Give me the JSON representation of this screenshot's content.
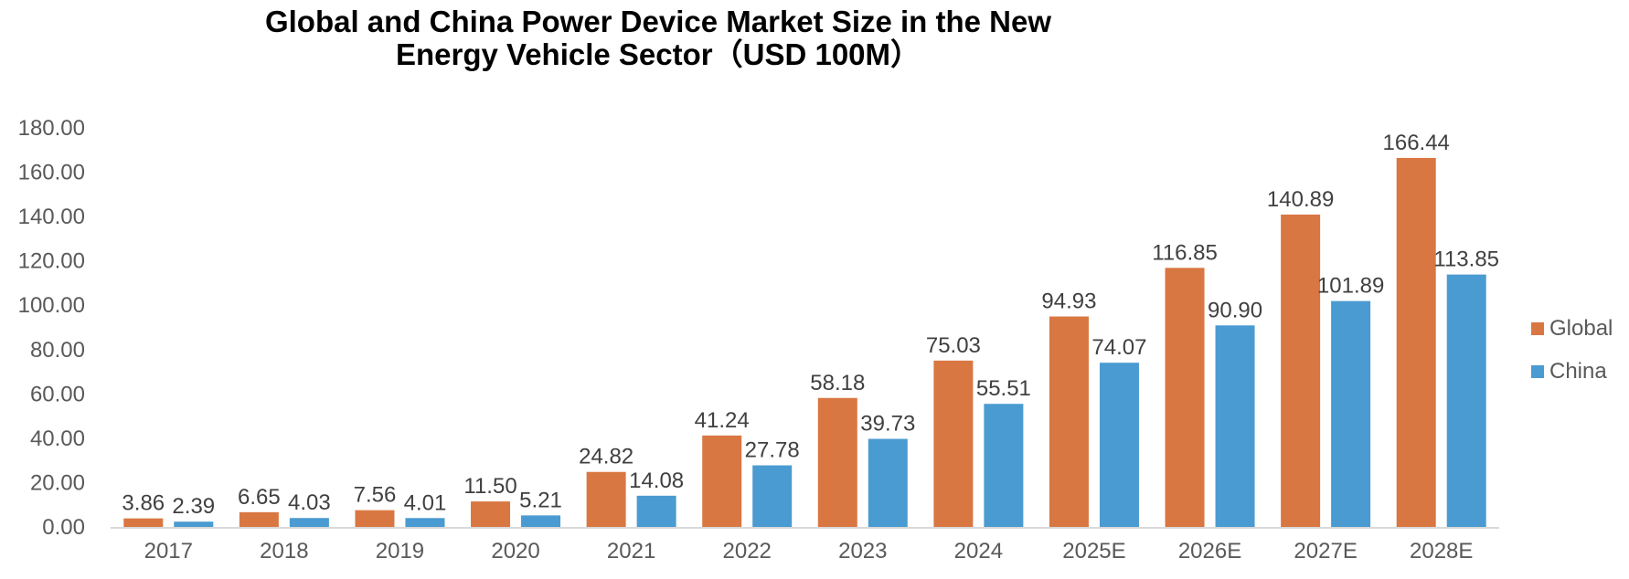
{
  "chart_data": {
    "type": "bar",
    "title": "Global and China Power Device Market Size in the New Energy Vehicle Sector（USD 100M）",
    "title_lines": [
      "Global and China Power Device Market Size in the New",
      "Energy Vehicle Sector（USD 100M）"
    ],
    "xlabel": "",
    "ylabel": "",
    "ylim": [
      0,
      180
    ],
    "yticks": [
      "0.00",
      "20.00",
      "40.00",
      "60.00",
      "80.00",
      "100.00",
      "120.00",
      "140.00",
      "160.00",
      "180.00"
    ],
    "ytick_values": [
      0,
      20,
      40,
      60,
      80,
      100,
      120,
      140,
      160,
      180
    ],
    "grid": false,
    "legend_position": "right",
    "categories": [
      "2017",
      "2018",
      "2019",
      "2020",
      "2021",
      "2022",
      "2023",
      "2024",
      "2025E",
      "2026E",
      "2027E",
      "2028E"
    ],
    "series": [
      {
        "name": "Global",
        "color": "#D97742",
        "values": [
          3.86,
          6.65,
          7.56,
          11.5,
          24.82,
          41.24,
          58.18,
          75.03,
          94.93,
          116.85,
          140.89,
          166.44
        ],
        "labels": [
          "3.86",
          "6.65",
          "7.56",
          "11.50",
          "24.82",
          "41.24",
          "58.18",
          "75.03",
          "94.93",
          "116.85",
          "140.89",
          "166.44"
        ]
      },
      {
        "name": "China",
        "color": "#4A9BD1",
        "values": [
          2.39,
          4.03,
          4.01,
          5.21,
          14.08,
          27.78,
          39.73,
          55.51,
          74.07,
          90.9,
          101.89,
          113.85
        ],
        "labels": [
          "2.39",
          "4.03",
          "4.01",
          "5.21",
          "14.08",
          "27.78",
          "39.73",
          "55.51",
          "74.07",
          "90.90",
          "101.89",
          "113.85"
        ]
      }
    ],
    "axis_color": "#D9D9D9"
  }
}
